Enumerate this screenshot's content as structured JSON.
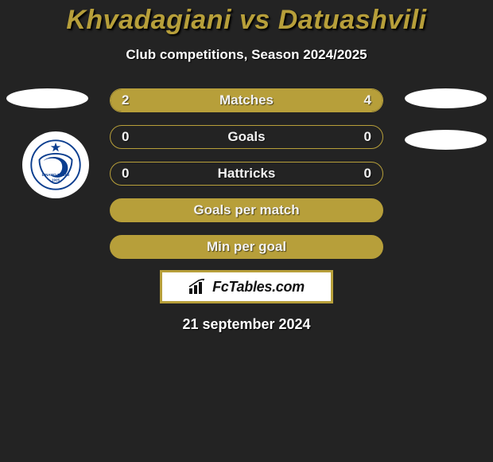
{
  "title": "Khvadagiani vs Datuashvili",
  "subtitle": "Club competitions, Season 2024/2025",
  "brand": "FcTables.com",
  "date": "21 september 2024",
  "colors": {
    "accent": "#b79f3a",
    "bg": "#232323",
    "text": "#ffffff",
    "brand_box_bg": "#ffffff"
  },
  "rows": [
    {
      "label": "Matches",
      "left": "2",
      "right": "4",
      "left_pct": 30,
      "right_pct": 70,
      "full": false
    },
    {
      "label": "Goals",
      "left": "0",
      "right": "0",
      "left_pct": 0,
      "right_pct": 0,
      "full": false
    },
    {
      "label": "Hattricks",
      "left": "0",
      "right": "0",
      "left_pct": 0,
      "right_pct": 0,
      "full": false
    },
    {
      "label": "Goals per match",
      "left": "",
      "right": "",
      "left_pct": 0,
      "right_pct": 0,
      "full": true
    },
    {
      "label": "Min per goal",
      "left": "",
      "right": "",
      "left_pct": 0,
      "right_pct": 0,
      "full": true
    }
  ],
  "club_logo": {
    "top_text": "DINAMO TBILISI",
    "year": "1925",
    "primary": "#0b3e8f",
    "star": "#0b3e8f"
  }
}
